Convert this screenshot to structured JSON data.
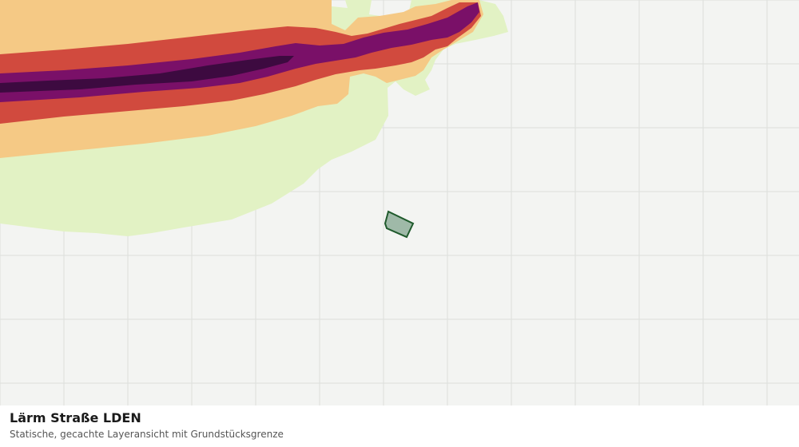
{
  "layer": {
    "title": "Lärm Straße LDEN",
    "subtitle": "Statische, gecachte Layeransicht mit Grundstücksgrenze"
  },
  "map": {
    "background_color": "#f3f4f2",
    "grid_color": "#dcdedb",
    "noise_band_colors": [
      "#e2f2c4",
      "#f5c985",
      "#d14a3e",
      "#7a1068",
      "#3d0a40"
    ],
    "parcel_fill": "#9fb9a8",
    "parcel_stroke": "#1f5a2c"
  }
}
